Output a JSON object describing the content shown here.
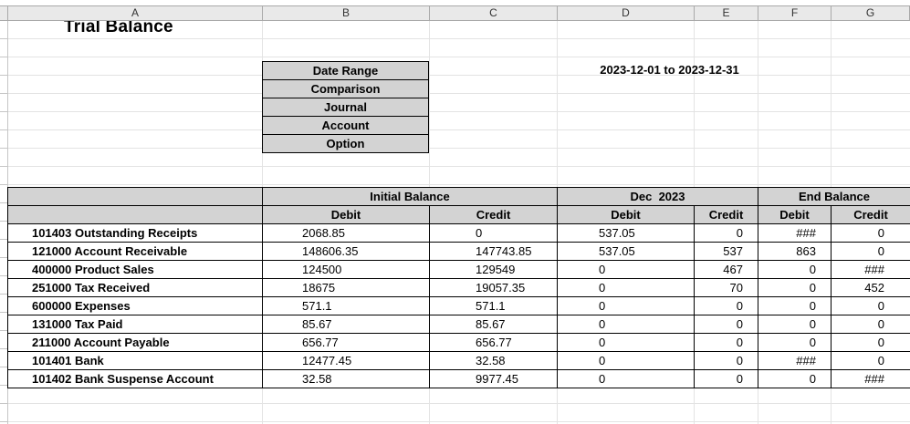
{
  "colors": {
    "header_fill": "#d3d3d3",
    "column_strip": "#e9e9e9",
    "grid_line": "#e3e3e3",
    "border": "#000000"
  },
  "column_strip": {
    "letters": [
      "A",
      "B",
      "C",
      "D",
      "E",
      "F",
      "G"
    ]
  },
  "title": "Trial Balance",
  "filters": {
    "rows": [
      {
        "label": "Date Range",
        "value": "2023-12-01 to 2023-12-31"
      },
      {
        "label": "Comparison",
        "value": ""
      },
      {
        "label": "Journal",
        "value": ""
      },
      {
        "label": "Account",
        "value": ""
      },
      {
        "label": "Option",
        "value": ""
      }
    ]
  },
  "table": {
    "groups": [
      {
        "label": "Initial Balance"
      },
      {
        "label": "Dec  2023"
      },
      {
        "label": "End Balance"
      }
    ],
    "subheaders": [
      "Debit",
      "Credit",
      "Debit",
      "Credit",
      "Debit",
      "Credit"
    ],
    "rows": [
      {
        "account": "101403 Outstanding Receipts",
        "values": [
          "2068.85",
          "0",
          "537.05",
          "0",
          "###",
          "0"
        ]
      },
      {
        "account": "121000 Account Receivable",
        "values": [
          "148606.35",
          "147743.85",
          "537.05",
          "537",
          "863",
          "0"
        ]
      },
      {
        "account": "400000 Product Sales",
        "values": [
          "124500",
          "129549",
          "0",
          "467",
          "0",
          "###"
        ]
      },
      {
        "account": "251000 Tax Received",
        "values": [
          "18675",
          "19057.35",
          "0",
          "70",
          "0",
          "452"
        ]
      },
      {
        "account": "600000 Expenses",
        "values": [
          "571.1",
          "571.1",
          "0",
          "0",
          "0",
          "0"
        ]
      },
      {
        "account": "131000 Tax Paid",
        "values": [
          "85.67",
          "85.67",
          "0",
          "0",
          "0",
          "0"
        ]
      },
      {
        "account": "211000 Account Payable",
        "values": [
          "656.77",
          "656.77",
          "0",
          "0",
          "0",
          "0"
        ]
      },
      {
        "account": "101401 Bank",
        "values": [
          "12477.45",
          "32.58",
          "0",
          "0",
          "###",
          "0"
        ]
      },
      {
        "account": "101402 Bank Suspense Account",
        "values": [
          "32.58",
          "9977.45",
          "0",
          "0",
          "0",
          "###"
        ]
      }
    ]
  }
}
